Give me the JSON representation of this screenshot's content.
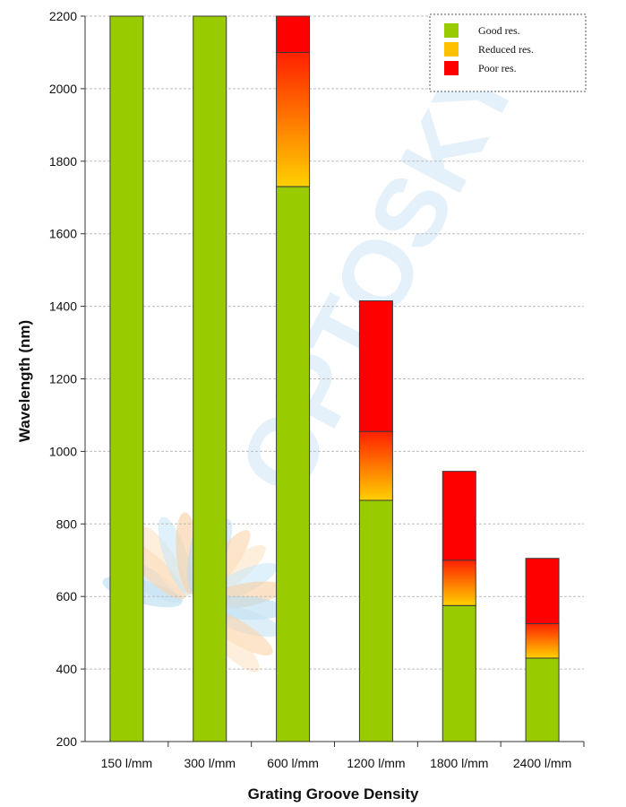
{
  "chart_data": {
    "type": "bar",
    "stacked": true,
    "xlabel": "Grating Groove Density",
    "ylabel": "Wavelength (nm)",
    "ylim": [
      200,
      2200
    ],
    "yticks": [
      200,
      400,
      600,
      800,
      1000,
      1200,
      1400,
      1600,
      1800,
      2000,
      2200
    ],
    "grid": "horizontal dashed",
    "legend_position": "top-right",
    "categories": [
      "150 l/mm",
      "300 l/mm",
      "600 l/mm",
      "1200 l/mm",
      "1800 l/mm",
      "2400 l/mm"
    ],
    "series": [
      {
        "name": "Good res.",
        "color": "#99cc00",
        "ranges": [
          [
            200,
            2200
          ],
          [
            200,
            2200
          ],
          [
            200,
            1730
          ],
          [
            200,
            865
          ],
          [
            200,
            575
          ],
          [
            200,
            430
          ]
        ]
      },
      {
        "name": "Reduced res.",
        "color": "#ffc000",
        "ranges": [
          null,
          null,
          [
            1730,
            2100
          ],
          [
            865,
            1055
          ],
          [
            575,
            700
          ],
          [
            430,
            525
          ]
        ]
      },
      {
        "name": "Poor res.",
        "color": "#ff0000",
        "ranges": [
          null,
          null,
          [
            2100,
            2200
          ],
          [
            1055,
            1415
          ],
          [
            700,
            945
          ],
          [
            525,
            705
          ]
        ]
      }
    ]
  },
  "watermark": {
    "text": "OPTOSKY"
  }
}
